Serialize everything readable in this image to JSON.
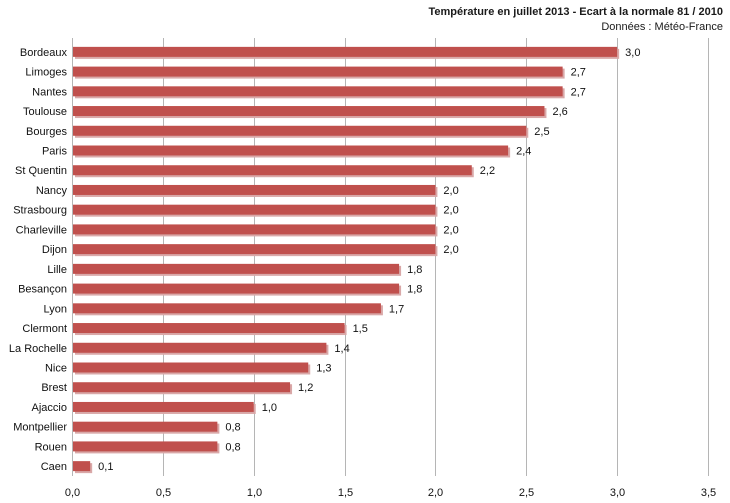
{
  "chart_data": {
    "type": "bar",
    "orientation": "horizontal",
    "title": "Température en juillet 2013 - Ecart à la normale 81 / 2010",
    "subtitle": "Données : Météo-France",
    "categories": [
      "Bordeaux",
      "Limoges",
      "Nantes",
      "Toulouse",
      "Bourges",
      "Paris",
      "St Quentin",
      "Nancy",
      "Strasbourg",
      "Charleville",
      "Dijon",
      "Lille",
      "Besançon",
      "Lyon",
      "Clermont",
      "La Rochelle",
      "Nice",
      "Brest",
      "Ajaccio",
      "Montpellier",
      "Rouen",
      "Caen"
    ],
    "values": [
      3.0,
      2.7,
      2.7,
      2.6,
      2.5,
      2.4,
      2.2,
      2.0,
      2.0,
      2.0,
      2.0,
      1.8,
      1.8,
      1.7,
      1.5,
      1.4,
      1.3,
      1.2,
      1.0,
      0.8,
      0.8,
      0.1
    ],
    "value_labels": [
      "3,0",
      "2,7",
      "2,7",
      "2,6",
      "2,5",
      "2,4",
      "2,2",
      "2,0",
      "2,0",
      "2,0",
      "2,0",
      "1,8",
      "1,8",
      "1,7",
      "1,5",
      "1,4",
      "1,3",
      "1,2",
      "1,0",
      "0,8",
      "0,8",
      "0,1"
    ],
    "xlim": [
      0,
      3.5
    ],
    "xticks": [
      0,
      0.5,
      1.0,
      1.5,
      2.0,
      2.5,
      3.0,
      3.5
    ],
    "xtick_labels": [
      "0,0",
      "0,5",
      "1,0",
      "1,5",
      "2,0",
      "2,5",
      "3,0",
      "3,5"
    ],
    "grid": true,
    "bar_color": "#c0504d"
  }
}
